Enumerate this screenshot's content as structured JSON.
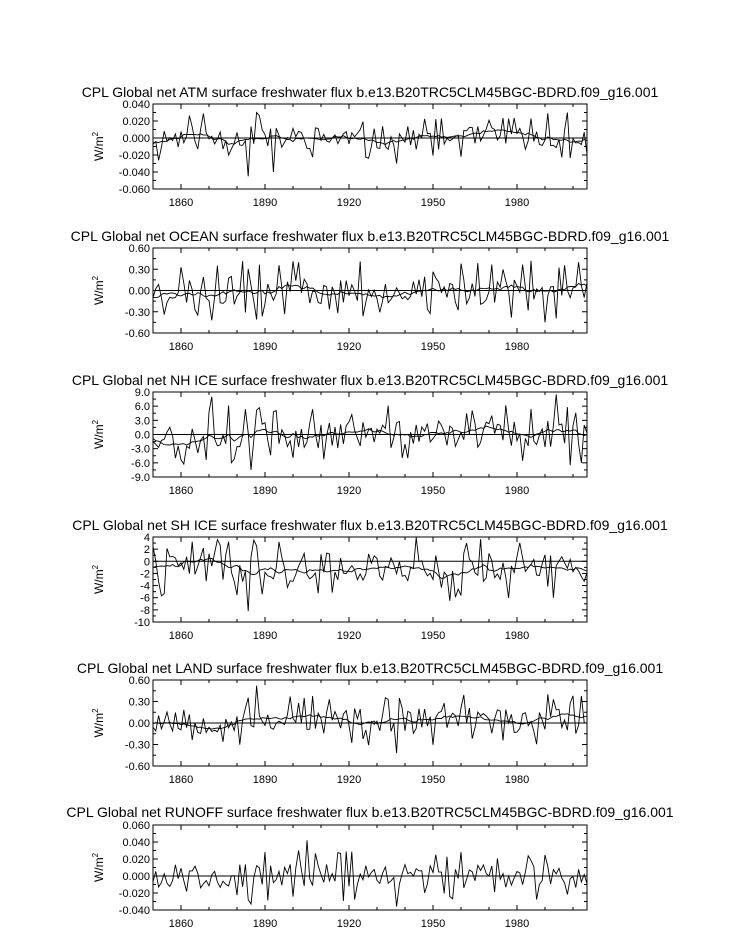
{
  "chart_data": [
    {
      "type": "line",
      "title": "CPL Global net ATM surface freshwater flux b.e13.B20TRC5CLM45BGC-BDRD.f09_g16.001",
      "ylabel": "W/m",
      "ylabel_sup": "2",
      "xlim": [
        1850,
        2005
      ],
      "ylim": [
        -0.06,
        0.04
      ],
      "yticks": [
        -0.06,
        -0.04,
        -0.02,
        0.0,
        0.02,
        0.04
      ],
      "ytick_labels": [
        "-0.060",
        "-0.040",
        "-0.020",
        "0.000",
        "0.020",
        "0.040"
      ],
      "xticks": [
        1860,
        1890,
        1920,
        1950,
        1980
      ],
      "xtick_labels": [
        "1860",
        "1890",
        "1920",
        "1950",
        "1980"
      ],
      "amplitude": 0.014,
      "spikes": [
        [
          1884,
          -0.045
        ],
        [
          1887,
          0.03
        ],
        [
          1893,
          -0.04
        ],
        [
          1937,
          -0.03
        ],
        [
          1960,
          -0.022
        ],
        [
          1998,
          0.03
        ]
      ],
      "smooth_amp": 0.002,
      "reference_line": 0,
      "seed": 11
    },
    {
      "type": "line",
      "title": "CPL Global net OCEAN surface freshwater flux b.e13.B20TRC5CLM45BGC-BDRD.f09_g16.001",
      "ylabel": "W/m",
      "ylabel_sup": "2",
      "xlim": [
        1850,
        2005
      ],
      "ylim": [
        -0.6,
        0.6
      ],
      "yticks": [
        -0.6,
        -0.3,
        0.0,
        0.3,
        0.6
      ],
      "ytick_labels": [
        "-0.60",
        "-0.30",
        "0.00",
        "0.30",
        "0.60"
      ],
      "xticks": [
        1860,
        1890,
        1920,
        1950,
        1980
      ],
      "xtick_labels": [
        "1860",
        "1890",
        "1920",
        "1950",
        "1980"
      ],
      "amplitude": 0.2,
      "spikes": [
        [
          1871,
          -0.42
        ],
        [
          1873,
          0.35
        ],
        [
          1902,
          0.4
        ],
        [
          1960,
          0.38
        ],
        [
          1990,
          -0.45
        ],
        [
          1985,
          0.42
        ],
        [
          2002,
          0.4
        ]
      ],
      "smooth_amp": 0.05,
      "reference_line": 0,
      "seed": 23
    },
    {
      "type": "line",
      "title": "CPL Global net NH ICE surface freshwater flux b.e13.B20TRC5CLM45BGC-BDRD.f09_g16.001",
      "ylabel": "W/m",
      "ylabel_sup": "2",
      "xlim": [
        1850,
        2005
      ],
      "ylim": [
        -9.0,
        9.0
      ],
      "yticks": [
        -9.0,
        -6.0,
        -3.0,
        0.0,
        3.0,
        6.0,
        9.0
      ],
      "ytick_labels": [
        "-9.0",
        "-6.0",
        "-3.0",
        "0.0",
        "3.0",
        "6.0",
        "9.0"
      ],
      "xticks": [
        1860,
        1890,
        1920,
        1950,
        1980
      ],
      "xtick_labels": [
        "1860",
        "1890",
        "1920",
        "1950",
        "1980"
      ],
      "amplitude": 3.0,
      "spikes": [
        [
          1871,
          8.0
        ],
        [
          1885,
          -7.5
        ],
        [
          1994,
          8.5
        ],
        [
          1999,
          -6.5
        ],
        [
          2003,
          -6.0
        ]
      ],
      "smooth_amp": 1.2,
      "reference_line": 0,
      "seed": 37
    },
    {
      "type": "line",
      "title": "CPL Global net SH ICE surface freshwater flux b.e13.B20TRC5CLM45BGC-BDRD.f09_g16.001",
      "ylabel": "W/m",
      "ylabel_sup": "2",
      "xlim": [
        1850,
        2005
      ],
      "ylim": [
        -10,
        4
      ],
      "yticks": [
        -10,
        -8,
        -6,
        -4,
        -2,
        0,
        2,
        4
      ],
      "ytick_labels": [
        "-10",
        "-8",
        "-6",
        "-4",
        "-2",
        "0",
        "2",
        "4"
      ],
      "xticks": [
        1860,
        1890,
        1920,
        1950,
        1980
      ],
      "xtick_labels": [
        "1860",
        "1890",
        "1920",
        "1950",
        "1980"
      ],
      "amplitude": 2.4,
      "spikes": [
        [
          1884,
          -8.2
        ],
        [
          1886,
          3.5
        ],
        [
          1956,
          -6.5
        ],
        [
          1962,
          3.0
        ],
        [
          1993,
          -6.0
        ]
      ],
      "smooth_amp": 0.5,
      "baseline": -1.0,
      "reference_line": 0,
      "seed": 41
    },
    {
      "type": "line",
      "title": "CPL Global net LAND surface freshwater flux b.e13.B20TRC5CLM45BGC-BDRD.f09_g16.001",
      "ylabel": "W/m",
      "ylabel_sup": "2",
      "xlim": [
        1850,
        2005
      ],
      "ylim": [
        -0.6,
        0.6
      ],
      "yticks": [
        -0.6,
        -0.3,
        0.0,
        0.3,
        0.6
      ],
      "ytick_labels": [
        "-0.60",
        "-0.30",
        "0.00",
        "0.30",
        "0.60"
      ],
      "xticks": [
        1860,
        1890,
        1920,
        1950,
        1980
      ],
      "xtick_labels": [
        "1860",
        "1890",
        "1920",
        "1950",
        "1980"
      ],
      "amplitude": 0.18,
      "spikes": [
        [
          1887,
          0.52
        ],
        [
          1937,
          -0.42
        ],
        [
          1904,
          0.35
        ],
        [
          1991,
          0.4
        ],
        [
          2000,
          0.38
        ]
      ],
      "smooth_amp": 0.05,
      "baseline": 0.03,
      "reference_line": 0,
      "seed": 53
    },
    {
      "type": "line",
      "title": "CPL Global net RUNOFF surface freshwater flux b.e13.B20TRC5CLM45BGC-BDRD.f09_g16.001",
      "ylabel": "W/m",
      "ylabel_sup": "2",
      "xlim": [
        1850,
        2005
      ],
      "ylim": [
        -0.04,
        0.06
      ],
      "yticks": [
        -0.04,
        -0.02,
        0.0,
        0.02,
        0.04,
        0.06
      ],
      "ytick_labels": [
        "-0.040",
        "-0.020",
        "0.000",
        "0.020",
        "0.040",
        "0.060"
      ],
      "xticks": [
        1860,
        1890,
        1920,
        1950,
        1980
      ],
      "xtick_labels": [
        "1860",
        "1890",
        "1920",
        "1950",
        "1980"
      ],
      "amplitude": 0.014,
      "spikes": [
        [
          1905,
          0.042
        ],
        [
          1902,
          0.03
        ],
        [
          1937,
          -0.036
        ],
        [
          1885,
          -0.033
        ],
        [
          1960,
          0.028
        ]
      ],
      "smooth_amp": 0.0,
      "reference_line": 0,
      "seed": 67
    }
  ]
}
